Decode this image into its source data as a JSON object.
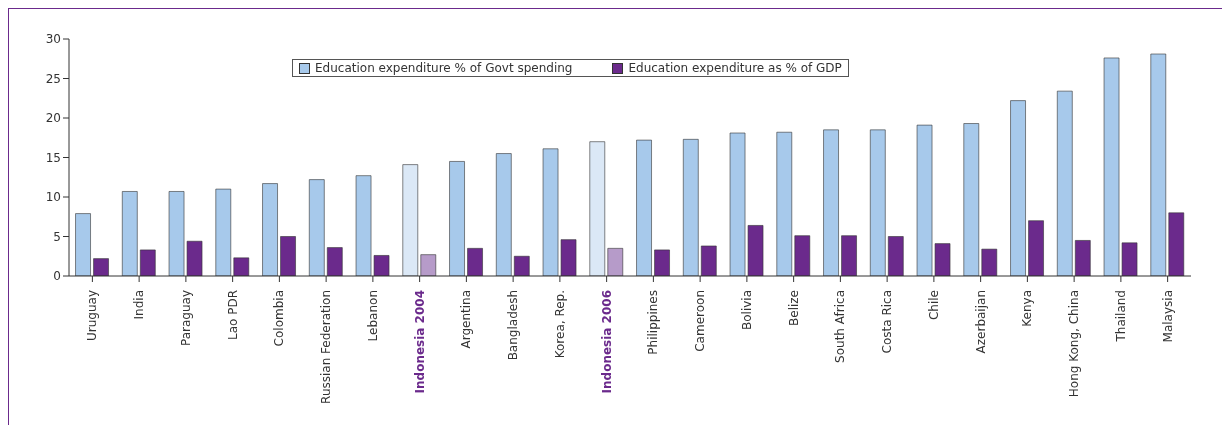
{
  "chart_data": {
    "type": "bar",
    "categories": [
      "Uruguay",
      "India",
      "Paraguay",
      "Lao PDR",
      "Colombia",
      "Russian Federation",
      "Lebanon",
      "Indonesia 2004",
      "Argentina",
      "Bangladesh",
      "Korea, Rep.",
      "Indonesia 2006",
      "Philippines",
      "Cameroon",
      "Bolivia",
      "Belize",
      "South Africa",
      "Costa Rica",
      "Chile",
      "Azerbaijan",
      "Kenya",
      "Hong Kong, China",
      "Thailand",
      "Malaysia"
    ],
    "series": [
      {
        "name": "Education expenditure % of Govt spending",
        "color": "#a7c9eb",
        "colors": [
          "#a7c9eb",
          "#a7c9eb",
          "#a7c9eb",
          "#a7c9eb",
          "#a7c9eb",
          "#a7c9eb",
          "#a7c9eb",
          "#dbe8f6",
          "#a7c9eb",
          "#a7c9eb",
          "#a7c9eb",
          "#dbe8f6",
          "#a7c9eb",
          "#a7c9eb",
          "#a7c9eb",
          "#a7c9eb",
          "#a7c9eb",
          "#a7c9eb",
          "#a7c9eb",
          "#a7c9eb",
          "#a7c9eb",
          "#a7c9eb",
          "#a7c9eb",
          "#a7c9eb"
        ],
        "values": [
          7.9,
          10.7,
          10.7,
          11.0,
          11.7,
          12.2,
          12.7,
          14.1,
          14.5,
          15.5,
          16.1,
          17.0,
          17.2,
          17.3,
          18.1,
          18.2,
          18.5,
          18.5,
          19.1,
          19.3,
          22.2,
          23.4,
          27.6,
          28.1
        ]
      },
      {
        "name": "Education expenditure as % of GDP",
        "color": "#6b2a8c",
        "colors": [
          "#6b2a8c",
          "#6b2a8c",
          "#6b2a8c",
          "#6b2a8c",
          "#6b2a8c",
          "#6b2a8c",
          "#6b2a8c",
          "#b69bc9",
          "#6b2a8c",
          "#6b2a8c",
          "#6b2a8c",
          "#b69bc9",
          "#6b2a8c",
          "#6b2a8c",
          "#6b2a8c",
          "#6b2a8c",
          "#6b2a8c",
          "#6b2a8c",
          "#6b2a8c",
          "#6b2a8c",
          "#6b2a8c",
          "#6b2a8c",
          "#6b2a8c",
          "#6b2a8c"
        ],
        "values": [
          2.2,
          3.3,
          4.4,
          2.3,
          5.0,
          3.6,
          2.6,
          2.7,
          3.5,
          2.5,
          4.6,
          3.5,
          3.3,
          3.8,
          6.4,
          5.1,
          5.1,
          5.0,
          4.1,
          3.4,
          7.0,
          4.5,
          4.2,
          8.0
        ]
      }
    ],
    "ylim": [
      0,
      30
    ],
    "yticks": [
      0,
      5,
      10,
      15,
      20,
      25,
      30
    ],
    "grid": false,
    "legend": "top"
  }
}
